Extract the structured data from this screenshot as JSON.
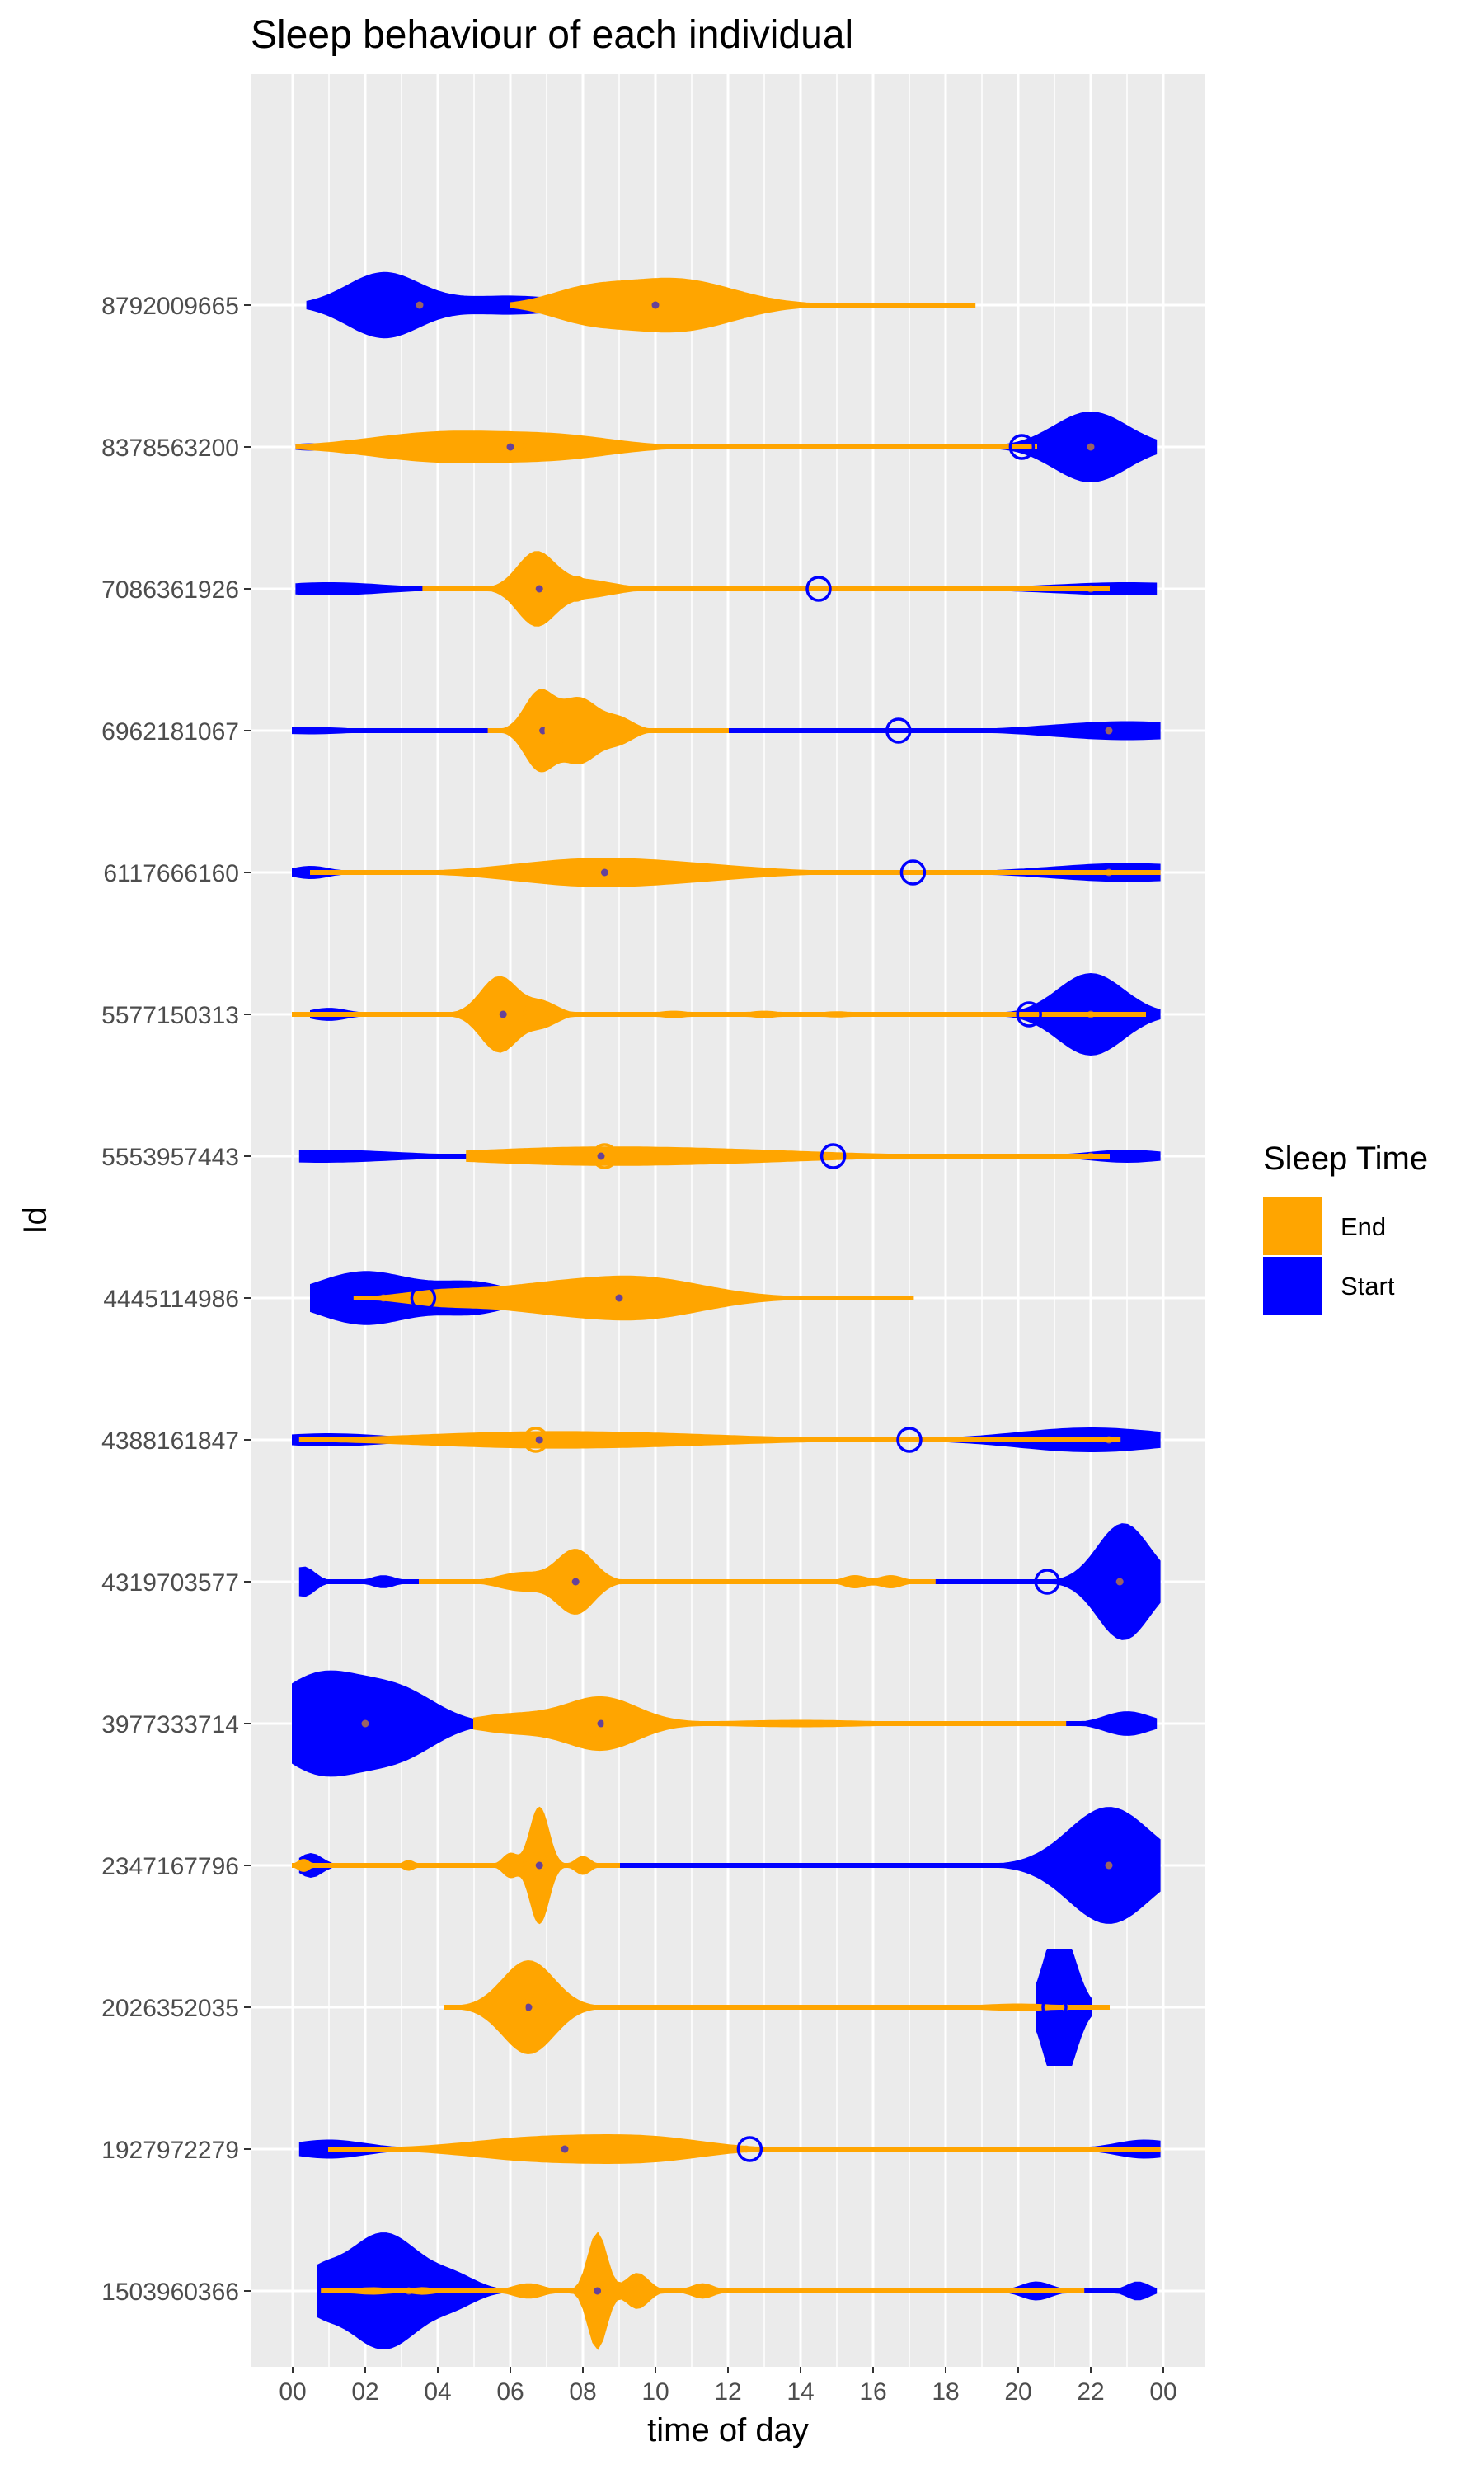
{
  "chart_data": {
    "type": "violin",
    "title": "Sleep behaviour of each individual",
    "xlabel": "time of day",
    "ylabel": "Id",
    "x_ticks": [
      "00",
      "02",
      "04",
      "06",
      "08",
      "10",
      "12",
      "14",
      "16",
      "18",
      "20",
      "22",
      "00"
    ],
    "xlim": [
      0,
      24
    ],
    "categories": [
      "1503960366",
      "1927972279",
      "2026352035",
      "2347167796",
      "3977333714",
      "4319703577",
      "4388161847",
      "4445114986",
      "5553957443",
      "5577150313",
      "6117666160",
      "6962181067",
      "7086361926",
      "8378563200",
      "8792009665"
    ],
    "grid": true,
    "legend": {
      "title": "Sleep Time",
      "position": "right",
      "entries": [
        {
          "label": "End",
          "color": "#FFA500"
        },
        {
          "label": "Start",
          "color": "#0000FF"
        }
      ]
    },
    "series": [
      {
        "name": "Start",
        "color": "#0000FF",
        "violins": [
          {
            "id": "1503960366",
            "range": [
              0.7,
              23.8
            ],
            "peaks": [
              [
                2.5,
                1.0,
                1.0
              ],
              [
                0.7,
                0.25,
                0.5
              ],
              [
                4.5,
                0.2,
                0.6
              ],
              [
                20.5,
                0.15,
                0.4
              ],
              [
                23.3,
                0.15,
                0.3
              ]
            ],
            "median": 3.2,
            "mean": null
          },
          {
            "id": "1927972279",
            "range": [
              0.2,
              23.9
            ],
            "peaks": [
              [
                1.0,
                0.15,
                1.0
              ],
              [
                23.5,
                0.15,
                0.8
              ]
            ],
            "median": 12.5,
            "mean": 12.6
          },
          {
            "id": "2026352035",
            "range": [
              20.5,
              22.0
            ],
            "peaks": [
              [
                21.0,
                1.0,
                0.35
              ],
              [
                21.4,
                0.6,
                0.35
              ]
            ],
            "median": 21.3,
            "mean": 21.0
          },
          {
            "id": "2347167796",
            "range": [
              0.2,
              23.9
            ],
            "peaks": [
              [
                22.5,
                1.0,
                1.1
              ],
              [
                0.5,
                0.2,
                0.3
              ]
            ],
            "median": 22.5,
            "mean": 20.8
          },
          {
            "id": "3977333714",
            "range": [
              0.0,
              23.8
            ],
            "peaks": [
              [
                0.8,
                0.85,
                1.2
              ],
              [
                3.0,
                0.5,
                1.0
              ],
              [
                23.0,
                0.2,
                0.6
              ]
            ],
            "median": 2.0,
            "mean": 4.1
          },
          {
            "id": "4319703577",
            "range": [
              0.2,
              23.9
            ],
            "peaks": [
              [
                22.9,
                1.0,
                0.7
              ],
              [
                0.3,
                0.25,
                0.3
              ],
              [
                2.5,
                0.1,
                0.3
              ]
            ],
            "median": 22.8,
            "mean": 20.8
          },
          {
            "id": "4388161847",
            "range": [
              0.0,
              23.9
            ],
            "peaks": [
              [
                22.0,
                0.2,
                2.0
              ],
              [
                1.0,
                0.1,
                1.5
              ]
            ],
            "median": 22.5,
            "mean": 17.0
          },
          {
            "id": "4445114986",
            "range": [
              0.5,
              12.8
            ],
            "peaks": [
              [
                2.0,
                0.45,
                1.3
              ],
              [
                5.0,
                0.25,
                1.0
              ]
            ],
            "median": 2.5,
            "mean": 3.6
          },
          {
            "id": "5553957443",
            "range": [
              0.2,
              23.9
            ],
            "peaks": [
              [
                0.8,
                0.1,
                2.0
              ],
              [
                23.0,
                0.1,
                1.0
              ]
            ],
            "median": 22.0,
            "mean": 14.9
          },
          {
            "id": "5577150313",
            "range": [
              0.5,
              23.9
            ],
            "peaks": [
              [
                22.0,
                0.7,
                0.9
              ],
              [
                1.0,
                0.1,
                0.5
              ]
            ],
            "median": 22.0,
            "mean": 20.3
          },
          {
            "id": "6117666160",
            "range": [
              0.0,
              23.9
            ],
            "peaks": [
              [
                23.0,
                0.15,
                2.0
              ],
              [
                0.5,
                0.1,
                0.5
              ]
            ],
            "median": 22.5,
            "mean": 17.1
          },
          {
            "id": "6962181067",
            "range": [
              0.0,
              23.9
            ],
            "peaks": [
              [
                23.0,
                0.15,
                2.0
              ],
              [
                0.5,
                0.05,
                1.0
              ]
            ],
            "median": 22.5,
            "mean": 16.7
          },
          {
            "id": "7086361926",
            "range": [
              0.1,
              23.8
            ],
            "peaks": [
              [
                23.0,
                0.1,
                2.0
              ],
              [
                1.0,
                0.1,
                1.5
              ]
            ],
            "median": 22.0,
            "mean": 14.5
          },
          {
            "id": "8378563200",
            "range": [
              0.1,
              23.8
            ],
            "peaks": [
              [
                22.0,
                0.6,
                1.0
              ],
              [
                0.5,
                0.05,
                0.5
              ]
            ],
            "median": 22.0,
            "mean": 20.1
          },
          {
            "id": "8792009665",
            "range": [
              0.4,
              17.3
            ],
            "peaks": [
              [
                2.5,
                0.55,
                1.0
              ],
              [
                6.0,
                0.15,
                1.5
              ]
            ],
            "median": 3.5,
            "mean": null
          }
        ]
      },
      {
        "name": "End",
        "color": "#FFA500",
        "violins": [
          {
            "id": "1503960366",
            "range": [
              0.8,
              21.8
            ],
            "peaks": [
              [
                8.4,
                1.0,
                0.25
              ],
              [
                9.5,
                0.3,
                0.3
              ],
              [
                11.3,
                0.12,
                0.3
              ],
              [
                6.5,
                0.12,
                0.4
              ],
              [
                2.2,
                0.05,
                0.5
              ],
              [
                3.6,
                0.05,
                0.3
              ]
            ],
            "median": 8.4,
            "mean": null
          },
          {
            "id": "1927972279",
            "range": [
              1.0,
              23.9
            ],
            "peaks": [
              [
                7.0,
                0.2,
                2.0
              ],
              [
                10.0,
                0.15,
                1.5
              ]
            ],
            "median": 7.5,
            "mean": 7.5
          },
          {
            "id": "2026352035",
            "range": [
              4.2,
              22.5
            ],
            "peaks": [
              [
                6.5,
                0.8,
                0.7
              ],
              [
                20.0,
                0.05,
                1.0
              ]
            ],
            "median": 6.5,
            "mean": 6.7
          },
          {
            "id": "2347167796",
            "range": [
              0.0,
              9.0
            ],
            "peaks": [
              [
                6.8,
                1.0,
                0.25
              ],
              [
                6.0,
                0.2,
                0.2
              ],
              [
                8.0,
                0.15,
                0.2
              ],
              [
                3.2,
                0.08,
                0.15
              ],
              [
                0.3,
                0.1,
                0.15
              ]
            ],
            "median": 6.8,
            "mean": 6.7
          },
          {
            "id": "3977333714",
            "range": [
              5.0,
              21.3
            ],
            "peaks": [
              [
                8.5,
                0.45,
                1.0
              ],
              [
                6.0,
                0.15,
                1.0
              ],
              [
                14.0,
                0.05,
                2.0
              ]
            ],
            "median": 8.5,
            "mean": 8.3
          },
          {
            "id": "4319703577",
            "range": [
              3.5,
              17.7
            ],
            "peaks": [
              [
                7.8,
                0.55,
                0.5
              ],
              [
                6.3,
                0.15,
                0.6
              ],
              [
                15.5,
                0.1,
                0.3
              ],
              [
                16.5,
                0.1,
                0.3
              ]
            ],
            "median": 7.8,
            "mean": 7.9
          },
          {
            "id": "4388161847",
            "range": [
              0.2,
              22.8
            ],
            "peaks": [
              [
                6.0,
                0.1,
                3.0
              ],
              [
                10.0,
                0.07,
                3.0
              ]
            ],
            "median": 6.8,
            "mean": 6.7
          },
          {
            "id": "4445114986",
            "range": [
              1.7,
              17.1
            ],
            "peaks": [
              [
                9.5,
                0.35,
                1.8
              ],
              [
                6.5,
                0.15,
                1.5
              ],
              [
                4.0,
                0.1,
                1.0
              ]
            ],
            "median": 9.0,
            "mean": 9.1
          },
          {
            "id": "5553957443",
            "range": [
              4.8,
              22.5
            ],
            "peaks": [
              [
                7.5,
                0.12,
                3.0
              ],
              [
                12.0,
                0.08,
                3.0
              ]
            ],
            "median": 8.5,
            "mean": 8.6
          },
          {
            "id": "5577150313",
            "range": [
              0.0,
              23.5
            ],
            "peaks": [
              [
                5.7,
                0.65,
                0.5
              ],
              [
                6.9,
                0.2,
                0.4
              ],
              [
                10.5,
                0.05,
                0.4
              ],
              [
                13.0,
                0.05,
                0.4
              ],
              [
                15.0,
                0.04,
                0.4
              ]
            ],
            "median": 5.8,
            "mean": 6.7
          },
          {
            "id": "6117666160",
            "range": [
              0.5,
              23.9
            ],
            "peaks": [
              [
                8.0,
                0.2,
                2.0
              ],
              [
                11.0,
                0.1,
                2.0
              ]
            ],
            "median": 8.6,
            "mean": 8.6
          },
          {
            "id": "6962181067",
            "range": [
              5.4,
              12.0
            ],
            "peaks": [
              [
                6.8,
                0.65,
                0.4
              ],
              [
                7.9,
                0.55,
                0.5
              ],
              [
                9.0,
                0.2,
                0.4
              ]
            ],
            "median": 6.9,
            "mean": 7.3
          },
          {
            "id": "7086361926",
            "range": [
              3.6,
              22.5
            ],
            "peaks": [
              [
                6.7,
                0.6,
                0.5
              ],
              [
                8.0,
                0.15,
                0.8
              ]
            ],
            "median": 6.8,
            "mean": 7.8
          },
          {
            "id": "8378563200",
            "range": [
              0.1,
              20.5
            ],
            "peaks": [
              [
                4.2,
                0.25,
                2.0
              ],
              [
                7.5,
                0.15,
                1.5
              ]
            ],
            "median": 6.0,
            "mean": 6.7
          },
          {
            "id": "8792009665",
            "range": [
              6.0,
              18.8
            ],
            "peaks": [
              [
                10.5,
                0.45,
                1.6
              ],
              [
                8.0,
                0.2,
                1.0
              ]
            ],
            "median": 10.0,
            "mean": null
          }
        ]
      }
    ]
  }
}
